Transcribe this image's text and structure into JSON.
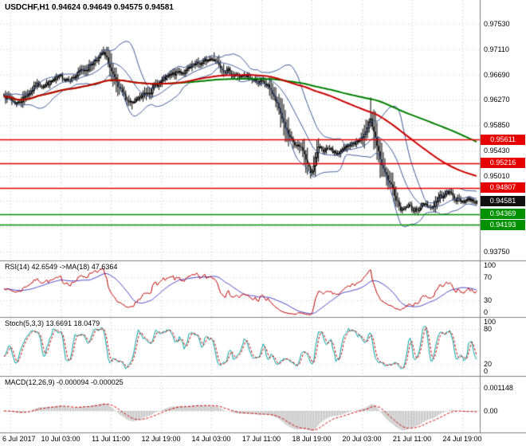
{
  "chart_header": {
    "title": "USDCHF,H1 0.94624 0.94649 0.94575 0.94581"
  },
  "colors": {
    "bg": "#ffffff",
    "grid": "#c9c9c9",
    "separator": "#7f7f7f",
    "text": "#000000",
    "candle_up_fill": "#ffffff",
    "candle_down_fill": "#000000",
    "candle_border": "#000000",
    "bollinger": "#3a5795",
    "ma_fast": "#cc0000",
    "ma_slow": "#008000",
    "resistance": "#e60000",
    "support": "#009100",
    "tag_current_bg": "#111111",
    "tag_text": "#ffffff",
    "rsi_line": "#c00000",
    "rsi_ma": "#4444cc",
    "stoch_main": "#00a3a3",
    "stoch_signal": "#cc0000",
    "macd_hist": "#aaaaaa",
    "macd_signal": "#cc0000"
  },
  "chart_data": {
    "type": "candlestick",
    "symbol": "USDCHF",
    "timeframe": "H1",
    "current_ohlc": {
      "open": 0.94624,
      "high": 0.94649,
      "low": 0.94575,
      "close": 0.94581
    },
    "y_range": [
      0.936,
      0.9793
    ],
    "bars": 300,
    "noise_seed": 7,
    "noise_amp": 0.0009,
    "wick_base": 0.0004,
    "wick_slope_gain": 0.5,
    "last_close": 0.94581,
    "close_keyframes": [
      [
        0.0,
        0.9638
      ],
      [
        0.015,
        0.9626
      ],
      [
        0.03,
        0.9622
      ],
      [
        0.05,
        0.9638
      ],
      [
        0.07,
        0.9652
      ],
      [
        0.095,
        0.9655
      ],
      [
        0.12,
        0.9662
      ],
      [
        0.15,
        0.9666
      ],
      [
        0.175,
        0.968
      ],
      [
        0.195,
        0.9696
      ],
      [
        0.21,
        0.9703
      ],
      [
        0.222,
        0.9685
      ],
      [
        0.24,
        0.9645
      ],
      [
        0.258,
        0.9628
      ],
      [
        0.275,
        0.962
      ],
      [
        0.29,
        0.963
      ],
      [
        0.31,
        0.9645
      ],
      [
        0.33,
        0.9655
      ],
      [
        0.35,
        0.9664
      ],
      [
        0.37,
        0.9672
      ],
      [
        0.39,
        0.9676
      ],
      [
        0.41,
        0.9684
      ],
      [
        0.43,
        0.9692
      ],
      [
        0.445,
        0.9697
      ],
      [
        0.46,
        0.9684
      ],
      [
        0.48,
        0.9672
      ],
      [
        0.5,
        0.9666
      ],
      [
        0.52,
        0.9662
      ],
      [
        0.545,
        0.9656
      ],
      [
        0.565,
        0.9645
      ],
      [
        0.578,
        0.9618
      ],
      [
        0.592,
        0.959
      ],
      [
        0.605,
        0.956
      ],
      [
        0.618,
        0.9548
      ],
      [
        0.632,
        0.9544
      ],
      [
        0.642,
        0.952
      ],
      [
        0.65,
        0.9502
      ],
      [
        0.658,
        0.953
      ],
      [
        0.668,
        0.9548
      ],
      [
        0.685,
        0.9542
      ],
      [
        0.7,
        0.9536
      ],
      [
        0.715,
        0.954
      ],
      [
        0.73,
        0.955
      ],
      [
        0.748,
        0.9558
      ],
      [
        0.762,
        0.9562
      ],
      [
        0.775,
        0.9601
      ],
      [
        0.783,
        0.957
      ],
      [
        0.792,
        0.9538
      ],
      [
        0.803,
        0.9508
      ],
      [
        0.815,
        0.9487
      ],
      [
        0.828,
        0.9465
      ],
      [
        0.842,
        0.9445
      ],
      [
        0.855,
        0.9452
      ],
      [
        0.868,
        0.9442
      ],
      [
        0.88,
        0.945
      ],
      [
        0.892,
        0.9455
      ],
      [
        0.905,
        0.9448
      ],
      [
        0.918,
        0.9462
      ],
      [
        0.93,
        0.947
      ],
      [
        0.942,
        0.9472
      ],
      [
        0.955,
        0.9465
      ],
      [
        0.968,
        0.9458
      ],
      [
        0.98,
        0.9463
      ],
      [
        1.0,
        0.94581
      ]
    ],
    "spikes": [
      {
        "t": 0.026,
        "low": 0.9615
      },
      {
        "t": 0.208,
        "high": 0.9711
      },
      {
        "t": 0.214,
        "high": 0.9707
      },
      {
        "t": 0.272,
        "low": 0.9611
      },
      {
        "t": 0.445,
        "high": 0.9706
      },
      {
        "t": 0.65,
        "low": 0.9496
      },
      {
        "t": 0.775,
        "high": 0.9631
      },
      {
        "t": 0.843,
        "low": 0.9438
      },
      {
        "t": 0.868,
        "low": 0.9437
      }
    ],
    "grid_levels": [
      0.9753,
      0.9711,
      0.9669,
      0.9627,
      0.9585,
      0.9543,
      0.9501,
      0.9459,
      0.9417,
      0.9375
    ],
    "y_axis_ticks": [
      {
        "label": "0.97530",
        "value": 0.9753
      },
      {
        "label": "0.97110",
        "value": 0.9711
      },
      {
        "label": "0.96690",
        "value": 0.9669
      },
      {
        "label": "0.96270",
        "value": 0.9627
      },
      {
        "label": "0.95850",
        "value": 0.9585
      },
      {
        "label": "0.95430",
        "value": 0.9543
      },
      {
        "label": "0.95010",
        "value": 0.9501
      },
      {
        "label": "0.93750",
        "value": 0.9375
      }
    ],
    "price_tags": [
      {
        "label": "0.95611",
        "value": 0.95611,
        "kind": "resistance"
      },
      {
        "label": "0.95216",
        "value": 0.95216,
        "kind": "resistance"
      },
      {
        "label": "0.94807",
        "value": 0.94807,
        "kind": "resistance"
      },
      {
        "label": "0.94581",
        "value": 0.94581,
        "kind": "current"
      },
      {
        "label": "0.94369",
        "value": 0.94369,
        "kind": "support"
      },
      {
        "label": "0.94193",
        "value": 0.94193,
        "kind": "support"
      }
    ],
    "h_levels": {
      "resistance": [
        0.95611,
        0.95216,
        0.94807
      ],
      "support": [
        0.94369,
        0.94193
      ],
      "current": 0.94581
    },
    "x_axis_labels": [
      "6 Jul 2017",
      "10 Jul 03:00",
      "11 Jul 11:00",
      "12 Jul 19:00",
      "14 Jul 03:00",
      "17 Jul 11:00",
      "18 Jul 19:00",
      "20 Jul 03:00",
      "21 Jul 11:00",
      "24 Jul 19:00"
    ],
    "overlays": {
      "bollinger": {
        "period": 20,
        "deviation": 2
      },
      "ma_fast": {
        "period": 110
      },
      "ma_slow": {
        "period": 180
      }
    },
    "macd_scale_to": 0.001,
    "panels": {
      "rsi": {
        "label": "RSI(14) 42.6549 ->MA(18) 47.6364",
        "period": 14,
        "ma_period": 18,
        "last": 42.6549,
        "ma_last": 47.6364,
        "levels": [
          70,
          30
        ],
        "ticks": [
          {
            "label": "100",
            "value": 100
          },
          {
            "label": "70",
            "value": 70
          },
          {
            "label": "30",
            "value": 30
          },
          {
            "label": "0",
            "value": 0
          }
        ]
      },
      "stoch": {
        "label": "Stoch(5,3,3) 13.6691 18.0479",
        "params": [
          5,
          3,
          3
        ],
        "last_main": 13.6691,
        "last_signal": 18.0479,
        "levels": [
          80,
          20
        ],
        "ticks": [
          {
            "label": "100",
            "value": 100
          },
          {
            "label": "80",
            "value": 80
          },
          {
            "label": "20",
            "value": 20
          },
          {
            "label": "0",
            "value": 0
          }
        ]
      },
      "macd": {
        "label": "MACD(12,26,9) -0.000094 -0.000025",
        "params": [
          12,
          26,
          9
        ],
        "last_main": -9.4e-05,
        "last_signal": -2.5e-05,
        "vmax": 0.00174,
        "vmin": -0.00107,
        "levels": [
          0.001148,
          0
        ],
        "ticks": [
          {
            "label": "0.001148",
            "value": 0.001148
          },
          {
            "label": "0.00",
            "value": 0
          }
        ]
      }
    }
  }
}
